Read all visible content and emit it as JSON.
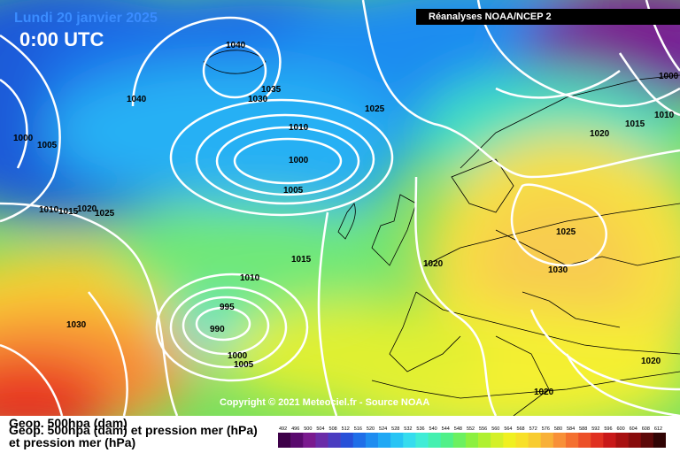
{
  "header": {
    "date": "Lundi 20 janvier 2025",
    "time": "0:00 UTC",
    "source": "Réanalyses NOAA/NCEP 2"
  },
  "footer": {
    "copyright": "Copyright © 2021 Meteociel.fr - Source NOAA",
    "caption_line1": "Geop. 500hpa (dam)",
    "caption_line2": "Geop. 500hpa (dam) et pression mer (hPa)",
    "caption_line3": "et pression mer (hPa)"
  },
  "isobars": [
    {
      "label": "1040"
    },
    {
      "label": "1040"
    },
    {
      "label": "1035"
    },
    {
      "label": "1030"
    },
    {
      "label": "1025"
    },
    {
      "label": "1010"
    },
    {
      "label": "1000"
    },
    {
      "label": "1005"
    },
    {
      "label": "1000"
    },
    {
      "label": "1005"
    },
    {
      "label": "1010"
    },
    {
      "label": "1015"
    },
    {
      "label": "1020"
    },
    {
      "label": "1025"
    },
    {
      "label": "1020"
    },
    {
      "label": "1015"
    },
    {
      "label": "1010"
    },
    {
      "label": "1010"
    },
    {
      "label": "995"
    },
    {
      "label": "990"
    },
    {
      "label": "1000"
    },
    {
      "label": "1005"
    },
    {
      "label": "1030"
    },
    {
      "label": "1020"
    },
    {
      "label": "1025"
    },
    {
      "label": "1030"
    },
    {
      "label": "1020"
    },
    {
      "label": "1020"
    },
    {
      "label": "1000"
    },
    {
      "label": "1010"
    },
    {
      "label": "1015"
    }
  ],
  "scale": {
    "labels": [
      "492",
      "496",
      "500",
      "504",
      "508",
      "512",
      "516",
      "520",
      "524",
      "528",
      "532",
      "536",
      "540",
      "544",
      "548",
      "552",
      "556",
      "560",
      "564",
      "568",
      "572",
      "576",
      "580",
      "584",
      "588",
      "592",
      "596",
      "600",
      "604",
      "608",
      "612"
    ],
    "colors": [
      "#3d0048",
      "#5a0a6e",
      "#7a1a8f",
      "#6a2ca8",
      "#4a3cc0",
      "#2850d8",
      "#1f6ee8",
      "#1e8cf0",
      "#20a8f4",
      "#28c4f4",
      "#36dcee",
      "#40ecd6",
      "#44f0b0",
      "#50f088",
      "#6cf060",
      "#8cf040",
      "#b0f030",
      "#d4f028",
      "#f0f020",
      "#f8e028",
      "#f8cc30",
      "#f8b038",
      "#f89038",
      "#f47030",
      "#ec5028",
      "#e03020",
      "#c81818",
      "#a81010",
      "#880c0c",
      "#5c0808",
      "#300404"
    ]
  }
}
